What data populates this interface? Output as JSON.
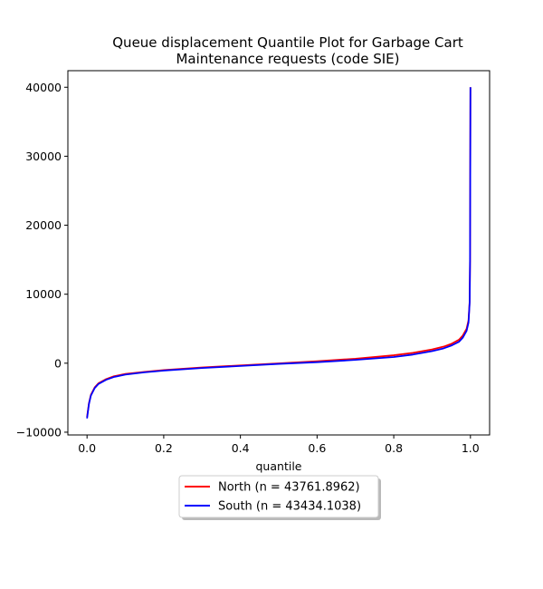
{
  "chart_data": {
    "type": "line",
    "title": "Queue displacement Quantile Plot for Garbage Cart\nMaintenance  requests (code SIE)",
    "xlabel": "quantile",
    "ylabel": "",
    "xlim": [
      -0.05,
      1.05
    ],
    "ylim": [
      -10400,
      42400
    ],
    "xticks": [
      0.0,
      0.2,
      0.4,
      0.6,
      0.8,
      1.0
    ],
    "xtick_labels": [
      "0.0",
      "0.2",
      "0.4",
      "0.6",
      "0.8",
      "1.0"
    ],
    "yticks": [
      -10000,
      0,
      10000,
      20000,
      30000,
      40000
    ],
    "ytick_labels": [
      "−10000",
      "0",
      "10000",
      "20000",
      "30000",
      "40000"
    ],
    "grid": false,
    "legend_position": "below-center",
    "series": [
      {
        "name": "North (n = 43761.8962)",
        "color": "#ff0000",
        "x": [
          0.0,
          0.005,
          0.01,
          0.02,
          0.03,
          0.05,
          0.07,
          0.1,
          0.15,
          0.2,
          0.3,
          0.4,
          0.5,
          0.6,
          0.7,
          0.8,
          0.85,
          0.9,
          0.93,
          0.95,
          0.97,
          0.98,
          0.99,
          0.995,
          0.998,
          0.999,
          1.0
        ],
        "y": [
          -7800,
          -5800,
          -4600,
          -3500,
          -2900,
          -2300,
          -1900,
          -1550,
          -1250,
          -1000,
          -620,
          -320,
          -20,
          280,
          650,
          1150,
          1500,
          2000,
          2400,
          2800,
          3400,
          4000,
          5000,
          6200,
          9000,
          15000,
          40000
        ]
      },
      {
        "name": "South (n = 43434.1038)",
        "color": "#0000ff",
        "x": [
          0.0,
          0.005,
          0.01,
          0.02,
          0.03,
          0.05,
          0.07,
          0.1,
          0.15,
          0.2,
          0.3,
          0.4,
          0.5,
          0.6,
          0.7,
          0.8,
          0.85,
          0.9,
          0.93,
          0.95,
          0.97,
          0.98,
          0.99,
          0.995,
          0.998,
          0.999,
          1.0
        ],
        "y": [
          -8000,
          -5900,
          -4700,
          -3600,
          -3000,
          -2400,
          -2000,
          -1650,
          -1320,
          -1070,
          -700,
          -400,
          -100,
          150,
          480,
          900,
          1250,
          1750,
          2150,
          2550,
          3100,
          3700,
          4700,
          5900,
          8800,
          14800,
          40000
        ]
      }
    ]
  }
}
